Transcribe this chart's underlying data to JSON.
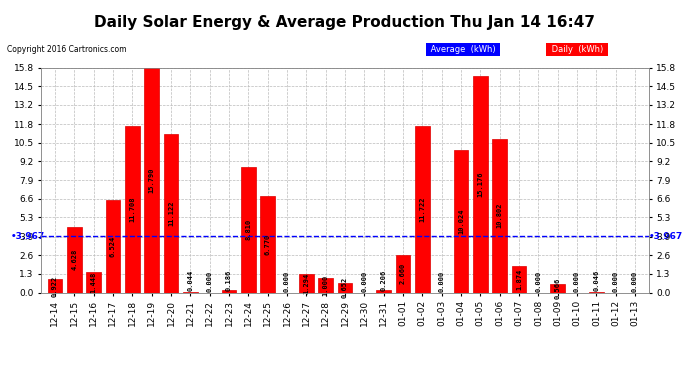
{
  "title": "Daily Solar Energy & Average Production Thu Jan 14 16:47",
  "copyright": "Copyright 2016 Cartronics.com",
  "categories": [
    "12-14",
    "12-15",
    "12-16",
    "12-17",
    "12-18",
    "12-19",
    "12-20",
    "12-21",
    "12-22",
    "12-23",
    "12-24",
    "12-25",
    "12-26",
    "12-27",
    "12-28",
    "12-29",
    "12-30",
    "12-31",
    "01-01",
    "01-02",
    "01-03",
    "01-04",
    "01-05",
    "01-06",
    "01-07",
    "01-08",
    "01-09",
    "01-10",
    "01-11",
    "01-12",
    "01-13"
  ],
  "values": [
    0.922,
    4.628,
    1.448,
    6.524,
    11.708,
    15.79,
    11.122,
    0.044,
    0.0,
    0.186,
    8.81,
    6.77,
    0.0,
    1.294,
    1.0,
    0.652,
    0.0,
    0.206,
    2.66,
    11.722,
    0.0,
    10.024,
    15.176,
    10.802,
    1.874,
    0.0,
    0.566,
    0.0,
    0.046,
    0.0,
    0.0
  ],
  "average": 3.967,
  "ylim": [
    0.0,
    15.8
  ],
  "yticks": [
    0.0,
    1.3,
    2.6,
    3.9,
    5.3,
    6.6,
    7.9,
    9.2,
    10.5,
    11.8,
    13.2,
    14.5,
    15.8
  ],
  "bar_color": "#ff0000",
  "bar_edge_color": "#dd0000",
  "avg_line_color": "#0000ff",
  "bg_color": "#ffffff",
  "grid_color": "#bbbbbb",
  "title_fontsize": 11,
  "tick_fontsize": 6.5,
  "value_fontsize": 5.0,
  "avg_label": "3.967",
  "legend_avg_color": "#0000ff",
  "legend_daily_color": "#ff0000",
  "legend_avg_text": "Average  (kWh)",
  "legend_daily_text": "Daily  (kWh)"
}
